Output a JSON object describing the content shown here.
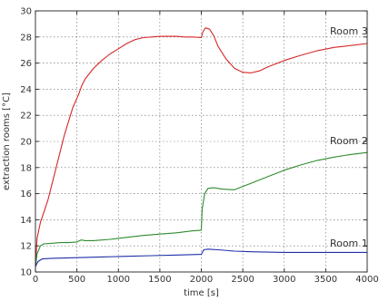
{
  "chart_data": {
    "type": "line",
    "title": "",
    "xlabel": "time [s]",
    "ylabel": "extraction rooms [°C]",
    "xlim": [
      0,
      4000
    ],
    "ylim": [
      10,
      30
    ],
    "xticks": [
      0,
      500,
      1000,
      1500,
      2000,
      2500,
      3000,
      3500,
      4000
    ],
    "yticks": [
      10,
      12,
      14,
      16,
      18,
      20,
      22,
      24,
      26,
      28,
      30
    ],
    "grid": true,
    "legend": "inline labels at right",
    "series": [
      {
        "name": "Room 3",
        "color": "#d62728",
        "label_anchor": [
          3550,
          28.2
        ],
        "points": [
          [
            0,
            10.4
          ],
          [
            20,
            12.6
          ],
          [
            60,
            13.8
          ],
          [
            150,
            15.5
          ],
          [
            250,
            18.0
          ],
          [
            350,
            20.5
          ],
          [
            450,
            22.6
          ],
          [
            520,
            23.6
          ],
          [
            560,
            24.3
          ],
          [
            600,
            24.8
          ],
          [
            700,
            25.6
          ],
          [
            800,
            26.2
          ],
          [
            900,
            26.7
          ],
          [
            1000,
            27.1
          ],
          [
            1100,
            27.5
          ],
          [
            1200,
            27.8
          ],
          [
            1300,
            27.95
          ],
          [
            1400,
            28.0
          ],
          [
            1500,
            28.05
          ],
          [
            1600,
            28.05
          ],
          [
            1700,
            28.05
          ],
          [
            1800,
            28.0
          ],
          [
            1900,
            28.0
          ],
          [
            2000,
            27.95
          ],
          [
            2020,
            28.4
          ],
          [
            2050,
            28.7
          ],
          [
            2100,
            28.6
          ],
          [
            2150,
            28.1
          ],
          [
            2200,
            27.3
          ],
          [
            2300,
            26.3
          ],
          [
            2400,
            25.6
          ],
          [
            2500,
            25.3
          ],
          [
            2600,
            25.25
          ],
          [
            2700,
            25.4
          ],
          [
            2800,
            25.7
          ],
          [
            3000,
            26.2
          ],
          [
            3200,
            26.6
          ],
          [
            3400,
            26.95
          ],
          [
            3600,
            27.2
          ],
          [
            3800,
            27.35
          ],
          [
            4000,
            27.5
          ]
        ]
      },
      {
        "name": "Room 2",
        "color": "#2e8b2e",
        "label_anchor": [
          3550,
          19.8
        ],
        "points": [
          [
            0,
            10.4
          ],
          [
            20,
            11.4
          ],
          [
            60,
            12.0
          ],
          [
            100,
            12.15
          ],
          [
            200,
            12.2
          ],
          [
            300,
            12.25
          ],
          [
            400,
            12.25
          ],
          [
            500,
            12.3
          ],
          [
            550,
            12.45
          ],
          [
            600,
            12.4
          ],
          [
            700,
            12.4
          ],
          [
            900,
            12.5
          ],
          [
            1100,
            12.65
          ],
          [
            1300,
            12.8
          ],
          [
            1500,
            12.9
          ],
          [
            1700,
            13.0
          ],
          [
            1900,
            13.15
          ],
          [
            2000,
            13.2
          ],
          [
            2010,
            14.8
          ],
          [
            2040,
            16.0
          ],
          [
            2080,
            16.4
          ],
          [
            2150,
            16.45
          ],
          [
            2250,
            16.35
          ],
          [
            2400,
            16.3
          ],
          [
            2600,
            16.8
          ],
          [
            2800,
            17.3
          ],
          [
            3000,
            17.8
          ],
          [
            3200,
            18.2
          ],
          [
            3400,
            18.55
          ],
          [
            3600,
            18.8
          ],
          [
            3800,
            19.0
          ],
          [
            4000,
            19.15
          ]
        ]
      },
      {
        "name": "Room 1",
        "color": "#1f2fa8",
        "label_anchor": [
          3550,
          11.95
        ],
        "points": [
          [
            0,
            10.4
          ],
          [
            30,
            10.8
          ],
          [
            80,
            11.0
          ],
          [
            200,
            11.05
          ],
          [
            500,
            11.1
          ],
          [
            800,
            11.15
          ],
          [
            1100,
            11.2
          ],
          [
            1400,
            11.25
          ],
          [
            1700,
            11.3
          ],
          [
            2000,
            11.35
          ],
          [
            2030,
            11.7
          ],
          [
            2080,
            11.75
          ],
          [
            2200,
            11.7
          ],
          [
            2400,
            11.6
          ],
          [
            2600,
            11.55
          ],
          [
            3000,
            11.5
          ],
          [
            3500,
            11.5
          ],
          [
            4000,
            11.5
          ]
        ]
      }
    ]
  }
}
